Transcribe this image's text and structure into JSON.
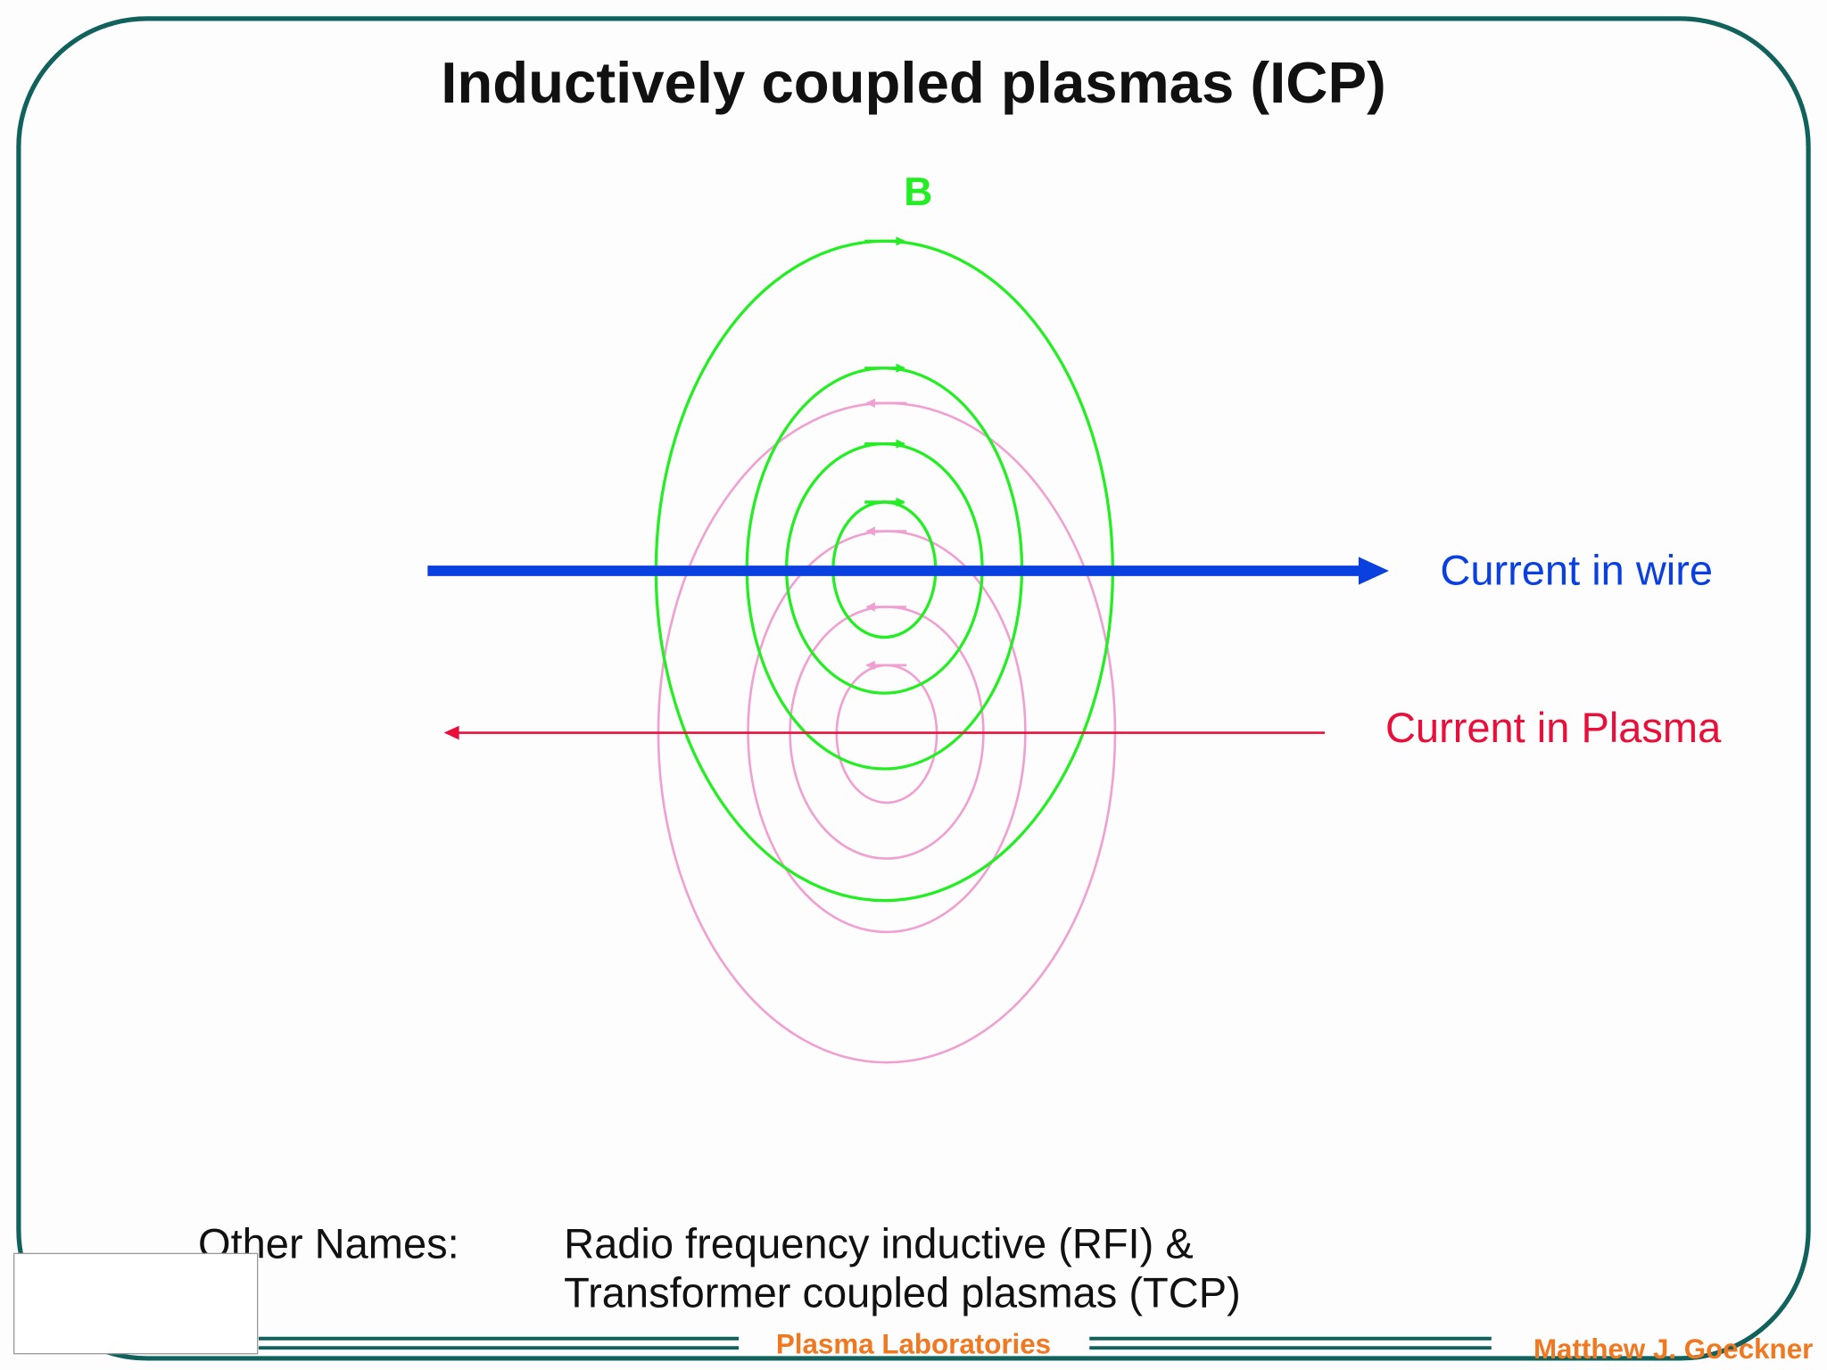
{
  "slide": {
    "title": "Inductively coupled plasmas (ICP)",
    "field_label": "B",
    "wire_label": "Current in wire",
    "plasma_label": "Current in Plasma",
    "other_names": {
      "label": "Other Names:",
      "lines": [
        "Radio frequency inductive (RFI) &",
        "Transformer coupled plasmas (TCP)"
      ]
    }
  },
  "footer": {
    "center": "Plasma Laboratories",
    "right": "Matthew J. Goeckner"
  }
}
